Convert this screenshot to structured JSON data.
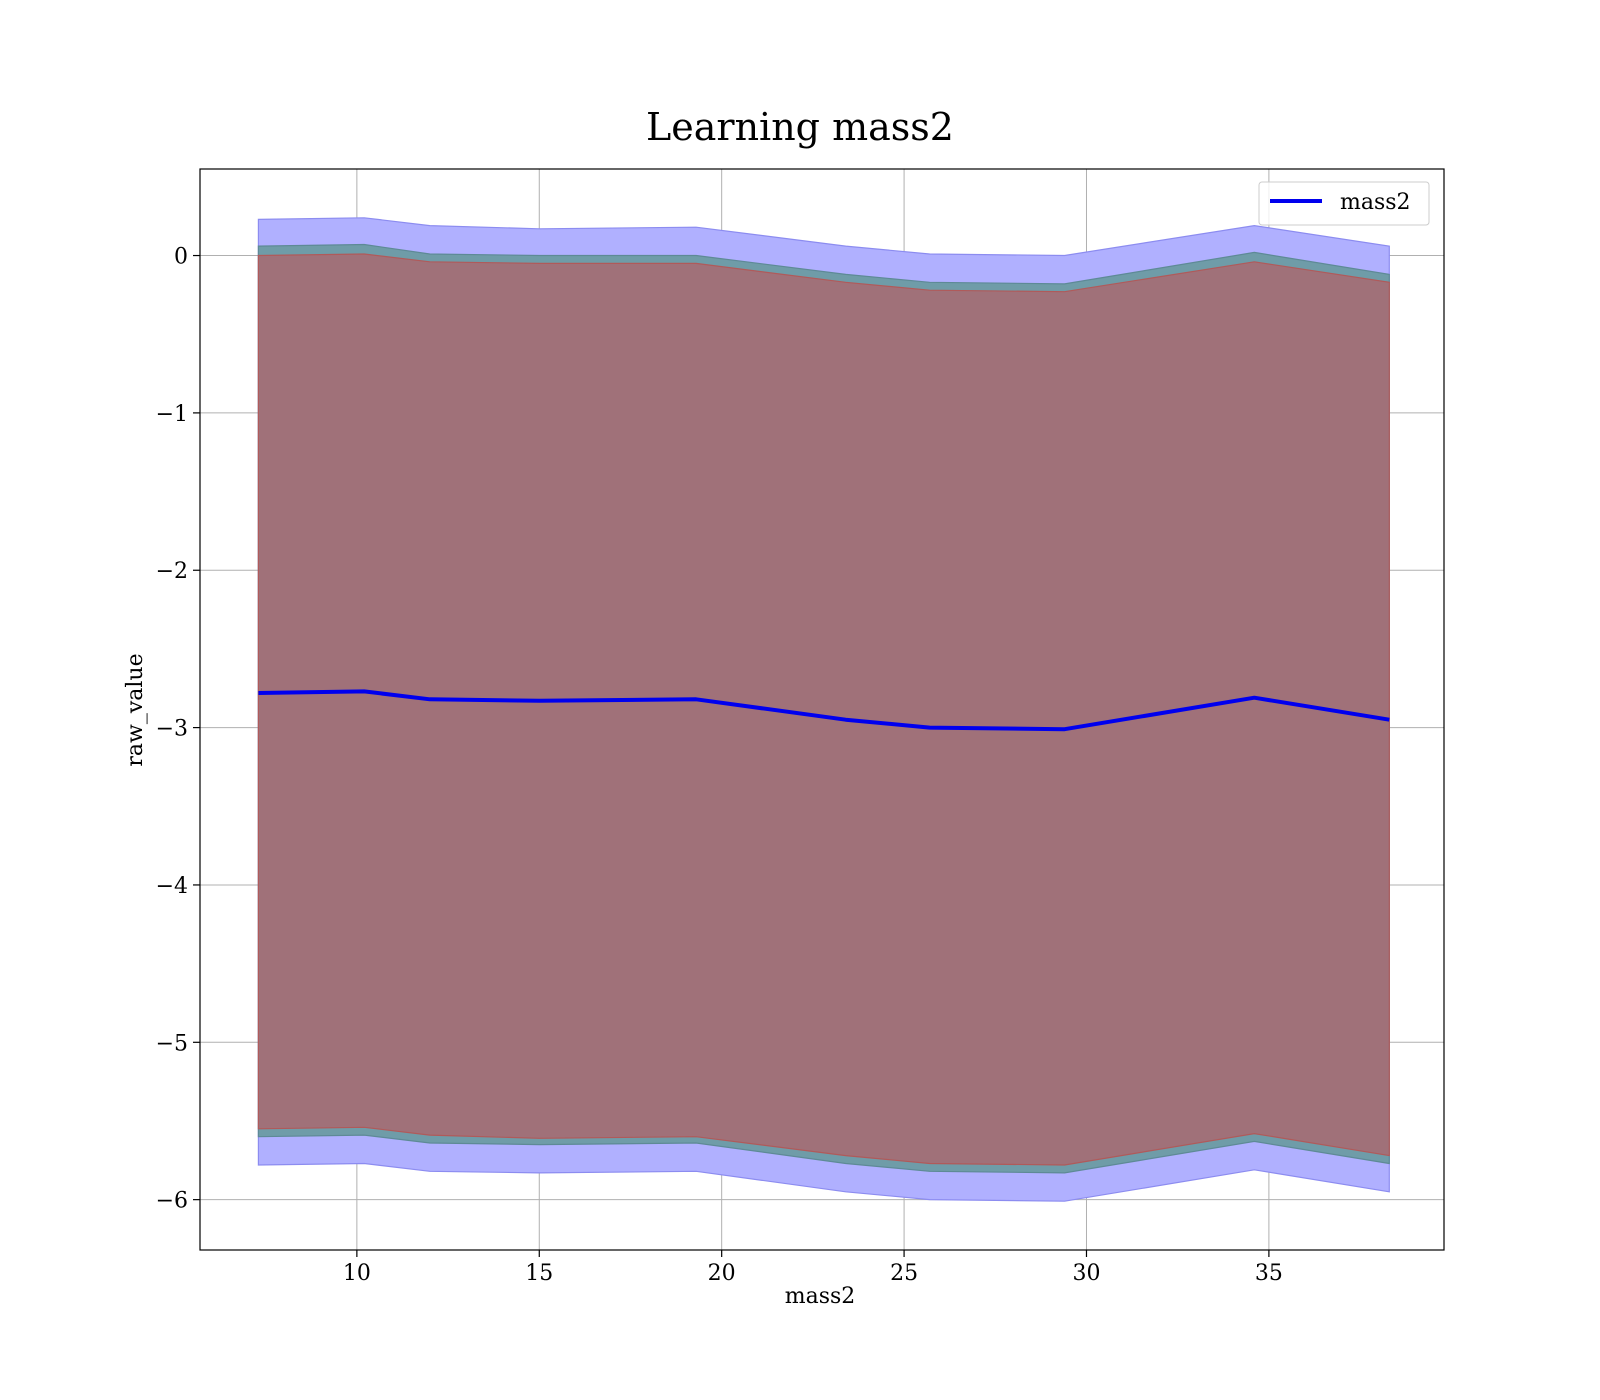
{
  "chart_data": {
    "type": "area",
    "title": "Learning mass2",
    "xlabel": "mass2",
    "ylabel": "raw_value",
    "xlim": [
      5.7,
      39.8
    ],
    "ylim": [
      -6.32,
      0.55
    ],
    "xticks": [
      10,
      15,
      20,
      25,
      30,
      35
    ],
    "xtick_labels": [
      "10",
      "15",
      "20",
      "25",
      "30",
      "35"
    ],
    "yticks": [
      0,
      -1,
      -2,
      -3,
      -4,
      -5,
      -6
    ],
    "ytick_labels": [
      "0",
      "−1",
      "−2",
      "−3",
      "−4",
      "−5",
      "−6"
    ],
    "grid": true,
    "legend": {
      "position": "top-right",
      "entries": [
        "mass2"
      ]
    },
    "colors": {
      "line": "#0000ee",
      "band_outer": "#b0b0ff",
      "band_middle": "#6f9ca8",
      "band_inner": "#a07179",
      "grid": "#b0b0b0"
    },
    "x": [
      7.3,
      10.2,
      12.0,
      15.0,
      19.3,
      23.4,
      25.7,
      29.4,
      34.6,
      38.3
    ],
    "series": [
      {
        "name": "mass2",
        "values": [
          -2.78,
          -2.77,
          -2.82,
          -2.83,
          -2.82,
          -2.95,
          -3.0,
          -3.01,
          -2.81,
          -2.95
        ]
      }
    ],
    "bands": [
      {
        "upper": [
          0.23,
          0.24,
          0.19,
          0.17,
          0.18,
          0.06,
          0.01,
          0.0,
          0.19,
          0.06
        ],
        "lower": [
          -5.78,
          -5.77,
          -5.82,
          -5.83,
          -5.82,
          -5.95,
          -6.0,
          -6.01,
          -5.81,
          -5.95
        ]
      },
      {
        "upper": [
          0.06,
          0.07,
          0.01,
          0.0,
          0.0,
          -0.12,
          -0.17,
          -0.18,
          0.02,
          -0.12
        ],
        "lower": [
          -5.6,
          -5.59,
          -5.64,
          -5.65,
          -5.64,
          -5.77,
          -5.82,
          -5.83,
          -5.63,
          -5.77
        ]
      },
      {
        "upper": [
          0.0,
          0.01,
          -0.04,
          -0.05,
          -0.05,
          -0.17,
          -0.22,
          -0.23,
          -0.04,
          -0.17
        ],
        "lower": [
          -5.55,
          -5.54,
          -5.59,
          -5.61,
          -5.6,
          -5.72,
          -5.77,
          -5.78,
          -5.58,
          -5.72
        ]
      }
    ]
  }
}
